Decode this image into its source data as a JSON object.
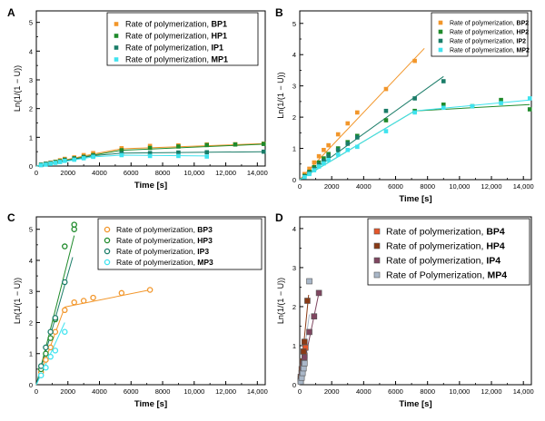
{
  "colors": {
    "orange": "#f2962a",
    "green": "#1f8a2b",
    "teal": "#1a7c68",
    "cyan": "#3fe3ef",
    "sq_orange": "#e5562a",
    "sq_brown": "#8a3a15",
    "sq_plum": "#7f4660",
    "sq_gray": "#a9b7c8"
  },
  "chart_data": [
    {
      "panel": "A",
      "type": "scatter",
      "xlabel": "Time [s]",
      "ylabel": "Ln(1/(1 − U))",
      "xlim": [
        0,
        14500
      ],
      "ylim": [
        0,
        5.4
      ],
      "legend_position": "top-right",
      "marker": "square",
      "xticks": [
        {
          "v": 0,
          "t": "0"
        },
        {
          "v": 2000,
          "t": "2000"
        },
        {
          "v": 4000,
          "t": "4000"
        },
        {
          "v": 6000,
          "t": "6000"
        },
        {
          "v": 8000,
          "t": "8000"
        },
        {
          "v": 10000,
          "t": "10,000"
        },
        {
          "v": 12000,
          "t": "12,000"
        },
        {
          "v": 14000,
          "t": "14,000"
        }
      ],
      "yticks": [
        {
          "v": 0,
          "t": "0"
        },
        {
          "v": 1,
          "t": "1"
        },
        {
          "v": 2,
          "t": "2"
        },
        {
          "v": 3,
          "t": "3"
        },
        {
          "v": 4,
          "t": "4"
        },
        {
          "v": 5,
          "t": "5"
        }
      ],
      "series": [
        {
          "name": "Rate of polymerization, ",
          "bold": "BP1",
          "color": "#f2962a",
          "x": [
            300,
            600,
            900,
            1200,
            1500,
            1800,
            2400,
            3000,
            3600,
            5400,
            7200,
            9000,
            10800,
            12600,
            14400
          ],
          "y": [
            0.05,
            0.08,
            0.12,
            0.15,
            0.2,
            0.25,
            0.3,
            0.38,
            0.45,
            0.62,
            0.7,
            0.72,
            0.75,
            0.76,
            0.78
          ],
          "lines": [
            [
              [
                0,
                0
              ],
              [
                3600,
                0.42
              ]
            ],
            [
              [
                3600,
                0.42
              ],
              [
                5400,
                0.6
              ],
              [
                14400,
                0.78
              ]
            ]
          ]
        },
        {
          "name": "Rate of polymerization, ",
          "bold": "HP1",
          "color": "#1f8a2b",
          "x": [
            300,
            600,
            900,
            1200,
            1500,
            1800,
            2400,
            3000,
            3600,
            5400,
            7200,
            9000,
            10800,
            12600,
            14400
          ],
          "y": [
            0.05,
            0.08,
            0.1,
            0.14,
            0.17,
            0.22,
            0.27,
            0.32,
            0.38,
            0.55,
            0.63,
            0.68,
            0.73,
            0.75,
            0.77
          ],
          "lines": [
            [
              [
                0,
                0
              ],
              [
                3600,
                0.38
              ],
              [
                5400,
                0.55
              ],
              [
                14400,
                0.76
              ]
            ]
          ]
        },
        {
          "name": "Rate of polymerization, ",
          "bold": "IP1",
          "color": "#1a7c68",
          "x": [
            300,
            600,
            900,
            1200,
            1500,
            1800,
            2400,
            3000,
            3600,
            5400,
            7200,
            9000,
            10800,
            14400
          ],
          "y": [
            0.04,
            0.07,
            0.1,
            0.12,
            0.15,
            0.2,
            0.25,
            0.3,
            0.35,
            0.45,
            0.45,
            0.47,
            0.48,
            0.5
          ],
          "lines": [
            [
              [
                0,
                0
              ],
              [
                3600,
                0.36
              ],
              [
                5400,
                0.45
              ],
              [
                14400,
                0.5
              ]
            ]
          ]
        },
        {
          "name": "Rate of polymerization, ",
          "bold": "MP1",
          "color": "#3fe3ef",
          "x": [
            300,
            600,
            900,
            1200,
            1500,
            1800,
            2400,
            3000,
            3600,
            5400,
            7200,
            9000,
            10800
          ],
          "y": [
            0.03,
            0.05,
            0.08,
            0.11,
            0.14,
            0.18,
            0.22,
            0.27,
            0.32,
            0.38,
            0.35,
            0.35,
            0.33
          ],
          "lines": [
            [
              [
                0,
                0
              ],
              [
                3600,
                0.32
              ],
              [
                5400,
                0.38
              ],
              [
                10800,
                0.35
              ]
            ]
          ]
        }
      ]
    },
    {
      "panel": "B",
      "type": "scatter",
      "xlabel": "Time [s]",
      "ylabel": "Ln(1/(1 − U))",
      "xlim": [
        0,
        14500
      ],
      "ylim": [
        0,
        5.4
      ],
      "legend_position": "top-right",
      "marker": "square",
      "xticks": [
        {
          "v": 0,
          "t": "0"
        },
        {
          "v": 2000,
          "t": "2000"
        },
        {
          "v": 4000,
          "t": "4000"
        },
        {
          "v": 6000,
          "t": "6000"
        },
        {
          "v": 8000,
          "t": "8000"
        },
        {
          "v": 10000,
          "t": "10,000"
        },
        {
          "v": 12000,
          "t": "12,000"
        },
        {
          "v": 14000,
          "t": "14,000"
        }
      ],
      "yticks": [
        {
          "v": 0,
          "t": "0"
        },
        {
          "v": 1,
          "t": "1"
        },
        {
          "v": 2,
          "t": "2"
        },
        {
          "v": 3,
          "t": "3"
        },
        {
          "v": 4,
          "t": "4"
        },
        {
          "v": 5,
          "t": "5"
        }
      ],
      "series": [
        {
          "name": "Rate of polymerization, ",
          "bold": "BP2",
          "color": "#f2962a",
          "x": [
            300,
            600,
            900,
            1200,
            1500,
            1800,
            2400,
            3000,
            3600,
            5400,
            7200
          ],
          "y": [
            0.18,
            0.35,
            0.55,
            0.75,
            0.95,
            1.1,
            1.45,
            1.8,
            2.15,
            2.9,
            3.8
          ],
          "lines": [
            [
              [
                0,
                0
              ],
              [
                7800,
                4.2
              ]
            ]
          ]
        },
        {
          "name": "Rate of polymerization, ",
          "bold": "HP2",
          "color": "#1f8a2b",
          "x": [
            300,
            600,
            900,
            1200,
            1500,
            1800,
            2400,
            3000,
            3600,
            5400,
            7200,
            9000,
            10800,
            12600,
            14400
          ],
          "y": [
            0.12,
            0.25,
            0.4,
            0.55,
            0.68,
            0.82,
            1.0,
            1.2,
            1.4,
            1.9,
            2.2,
            2.4,
            2.35,
            2.55,
            2.25
          ],
          "lines": [
            [
              [
                0,
                0
              ],
              [
                7200,
                2.2
              ],
              [
                14400,
                2.4
              ]
            ]
          ]
        },
        {
          "name": "Rate of polymerization, ",
          "bold": "IP2",
          "color": "#1a7c68",
          "x": [
            300,
            600,
            900,
            1200,
            1500,
            1800,
            2400,
            3000,
            3600,
            5400,
            7200,
            9000
          ],
          "y": [
            0.1,
            0.22,
            0.35,
            0.48,
            0.6,
            0.75,
            0.95,
            1.15,
            1.35,
            2.2,
            2.6,
            3.15
          ],
          "lines": [
            [
              [
                0,
                0
              ],
              [
                9000,
                3.3
              ]
            ]
          ]
        },
        {
          "name": "Rate of polymerization, ",
          "bold": "MP2",
          "color": "#3fe3ef",
          "x": [
            300,
            600,
            900,
            1200,
            1500,
            1800,
            2400,
            3000,
            3600,
            5400,
            7200,
            9000,
            10800,
            12600,
            14400
          ],
          "y": [
            0.08,
            0.18,
            0.3,
            0.42,
            0.52,
            0.63,
            0.8,
            0.95,
            1.05,
            1.55,
            2.15,
            2.3,
            2.35,
            2.45,
            2.6
          ],
          "lines": [
            [
              [
                0,
                0
              ],
              [
                7200,
                2.2
              ],
              [
                14400,
                2.55
              ]
            ]
          ]
        }
      ]
    },
    {
      "panel": "C",
      "type": "scatter",
      "xlabel": "Time [s]",
      "ylabel": "Ln(1/(1 − U))",
      "xlim": [
        0,
        14500
      ],
      "ylim": [
        0,
        5.4
      ],
      "legend_position": "top-right",
      "marker": "circle",
      "xticks": [
        {
          "v": 0,
          "t": "0"
        },
        {
          "v": 2000,
          "t": "2000"
        },
        {
          "v": 4000,
          "t": "4000"
        },
        {
          "v": 6000,
          "t": "6000"
        },
        {
          "v": 8000,
          "t": "8000"
        },
        {
          "v": 10000,
          "t": "10,000"
        },
        {
          "v": 12000,
          "t": "12,000"
        },
        {
          "v": 14000,
          "t": "14,000"
        }
      ],
      "yticks": [
        {
          "v": 0,
          "t": "0"
        },
        {
          "v": 1,
          "t": "1"
        },
        {
          "v": 2,
          "t": "2"
        },
        {
          "v": 3,
          "t": "3"
        },
        {
          "v": 4,
          "t": "4"
        },
        {
          "v": 5,
          "t": "5"
        }
      ],
      "series": [
        {
          "name": "Rate of polymerization, ",
          "bold": "BP3",
          "color": "#f2962a",
          "x": [
            300,
            600,
            900,
            1200,
            1800,
            2400,
            3000,
            3600,
            5400,
            7200
          ],
          "y": [
            0.4,
            0.8,
            1.2,
            1.7,
            2.4,
            2.65,
            2.7,
            2.8,
            2.95,
            3.05
          ],
          "lines": [
            [
              [
                0,
                0
              ],
              [
                1800,
                2.5
              ]
            ],
            [
              [
                1800,
                2.5
              ],
              [
                7200,
                3.05
              ]
            ]
          ]
        },
        {
          "name": "Rate of polymerization, ",
          "bold": "HP3",
          "color": "#1f8a2b",
          "x": [
            300,
            600,
            900,
            1200,
            1800,
            2400,
            2400
          ],
          "y": [
            0.5,
            1.0,
            1.5,
            2.1,
            4.45,
            5.0,
            5.15
          ],
          "lines": [
            [
              [
                0,
                0
              ],
              [
                2400,
                4.8
              ]
            ]
          ]
        },
        {
          "name": "Rate of polymerization, ",
          "bold": "IP3",
          "color": "#1a7c68",
          "x": [
            300,
            600,
            900,
            1200,
            1800
          ],
          "y": [
            0.6,
            1.2,
            1.7,
            2.15,
            3.3
          ],
          "lines": [
            [
              [
                0,
                0
              ],
              [
                2300,
                4.1
              ]
            ]
          ]
        },
        {
          "name": "Rate of polymerization, ",
          "bold": "MP3",
          "color": "#3fe3ef",
          "x": [
            300,
            600,
            900,
            1200,
            1800
          ],
          "y": [
            0.3,
            0.55,
            0.9,
            1.1,
            1.7
          ],
          "lines": [
            [
              [
                0,
                0
              ],
              [
                1800,
                2.0
              ]
            ]
          ]
        }
      ]
    },
    {
      "panel": "D",
      "type": "scatter",
      "xlabel": "Time [s]",
      "ylabel": "Ln(1/(1 − U))",
      "xlim": [
        0,
        14500
      ],
      "ylim": [
        0,
        4.3
      ],
      "legend_position": "top-right",
      "marker": "square-big",
      "xticks": [
        {
          "v": 0,
          "t": "0"
        },
        {
          "v": 2000,
          "t": "2000"
        },
        {
          "v": 4000,
          "t": "4000"
        },
        {
          "v": 6000,
          "t": "6000"
        },
        {
          "v": 8000,
          "t": "8000"
        },
        {
          "v": 10000,
          "t": "10,000"
        },
        {
          "v": 12000,
          "t": "12,000"
        },
        {
          "v": 14000,
          "t": "14,000"
        }
      ],
      "yticks": [
        {
          "v": 0,
          "t": "0"
        },
        {
          "v": 1,
          "t": "1"
        },
        {
          "v": 2,
          "t": "2"
        },
        {
          "v": 3,
          "t": "3"
        },
        {
          "v": 4,
          "t": "4"
        }
      ],
      "series": [
        {
          "name": "Rate of polymerization, ",
          "bold": "BP4",
          "color": "#e5562a",
          "x": [
            60,
            120,
            180,
            240,
            300,
            360
          ],
          "y": [
            0.15,
            0.3,
            0.45,
            0.6,
            0.75,
            0.95
          ],
          "lines": [
            [
              [
                0,
                0
              ],
              [
                360,
                1.0
              ]
            ]
          ]
        },
        {
          "name": "Rate of polymerization, ",
          "bold": "HP4",
          "color": "#8a3a15",
          "x": [
            60,
            120,
            180,
            240,
            300,
            480
          ],
          "y": [
            0.2,
            0.4,
            0.6,
            0.85,
            1.1,
            2.15
          ],
          "lines": [
            [
              [
                0,
                0
              ],
              [
                560,
                2.3
              ]
            ]
          ]
        },
        {
          "name": "Rate of polymerization, ",
          "bold": "IP4",
          "color": "#7f4660",
          "x": [
            60,
            120,
            180,
            240,
            300,
            600,
            900,
            1200
          ],
          "y": [
            0.1,
            0.25,
            0.4,
            0.55,
            0.7,
            1.35,
            1.75,
            2.35
          ],
          "lines": [
            [
              [
                0,
                0
              ],
              [
                1200,
                2.35
              ]
            ]
          ]
        },
        {
          "name": "Rate of Polymerization, ",
          "bold": "MP4",
          "color": "#a9b7c8",
          "x": [
            60,
            120,
            180,
            240,
            300,
            600
          ],
          "y": [
            0.08,
            0.18,
            0.3,
            0.42,
            0.55,
            2.65
          ],
          "lines": [
            [
              [
                0,
                0
              ],
              [
                600,
                1.8
              ]
            ]
          ]
        }
      ]
    }
  ]
}
